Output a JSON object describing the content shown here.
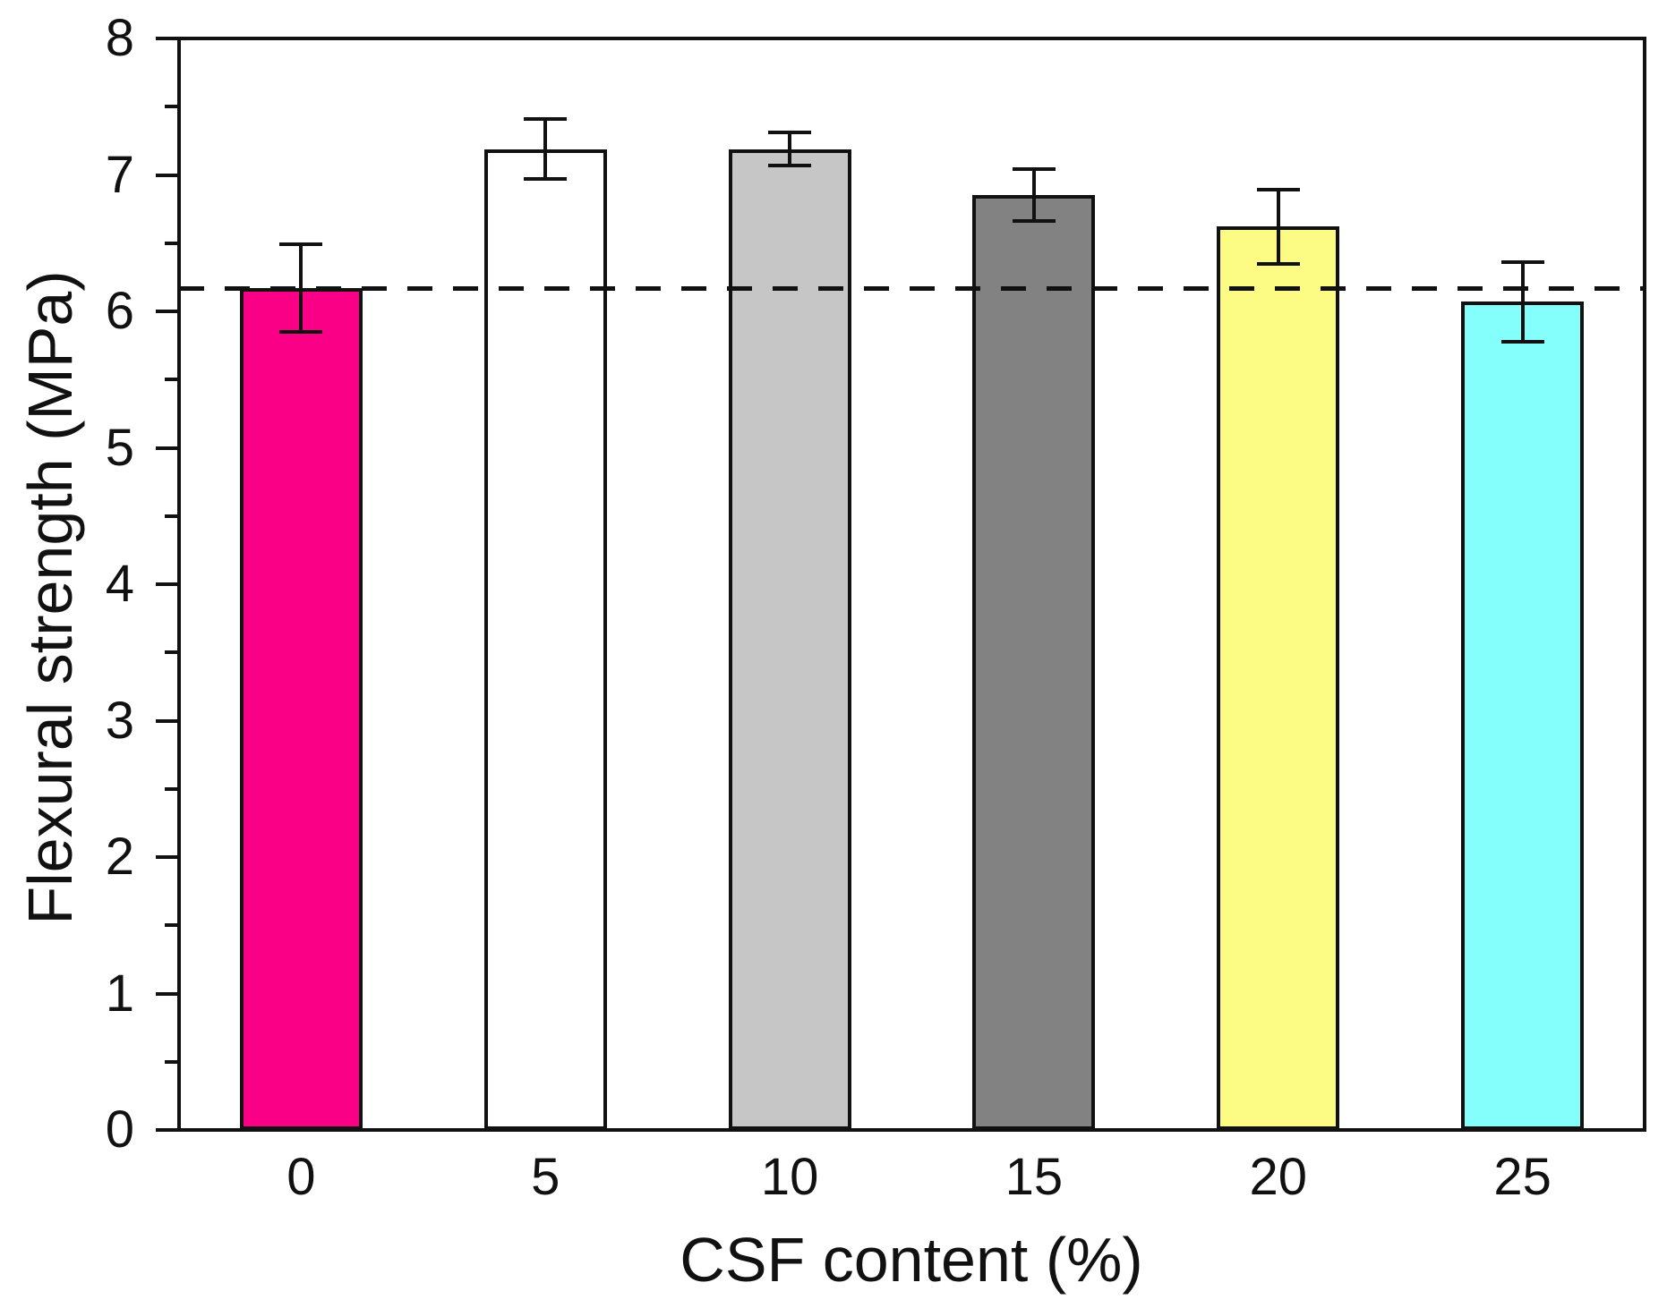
{
  "figure": {
    "background": "#ffffff",
    "axis_color": "#111111"
  },
  "chart_data": {
    "type": "bar",
    "title": "",
    "xlabel": "CSF content (%)",
    "ylabel": "Flexural strength (MPa)",
    "categories": [
      "0",
      "5",
      "10",
      "15",
      "20",
      "25"
    ],
    "values": [
      6.17,
      7.19,
      7.19,
      6.85,
      6.62,
      6.07
    ],
    "errors": [
      0.32,
      0.22,
      0.12,
      0.19,
      0.27,
      0.29
    ],
    "bar_colors": [
      "#fa0087",
      "#ffffff",
      "#c6c6c6",
      "#828282",
      "#fcfc85",
      "#85fffb"
    ],
    "bar_edge_color": "#111111",
    "error_bar_color": "#111111",
    "reference_line": {
      "value": 6.17,
      "style": "dashed",
      "color": "#111111"
    },
    "ylim": [
      0,
      8
    ],
    "y_tick_labels": [
      "0",
      "1",
      "2",
      "3",
      "4",
      "5",
      "6",
      "7",
      "8"
    ],
    "y_minor_step": 0.5,
    "grid": false,
    "legend": null
  }
}
